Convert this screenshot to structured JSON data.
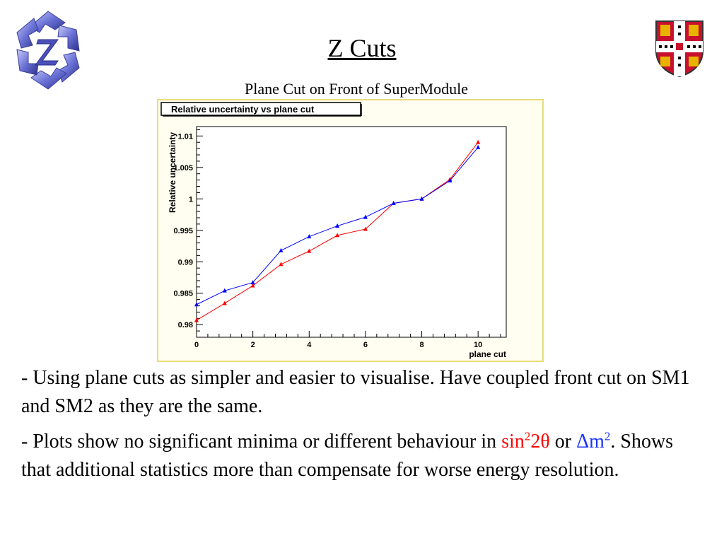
{
  "header": {
    "title": "Z Cuts",
    "subtitle": "Plane Cut on Front of SuperModule"
  },
  "logos": {
    "left": "minos-star-logo",
    "right": "cambridge-crest-logo"
  },
  "chart_data": {
    "type": "line",
    "title": "Relative uncertainty vs plane cut",
    "xlabel": "plane cut",
    "ylabel": "Relative uncertainty",
    "xlim": [
      0,
      11
    ],
    "ylim": [
      0.978,
      1.0115
    ],
    "x_ticks": [
      "0",
      "2",
      "4",
      "6",
      "8",
      "10"
    ],
    "y_ticks": [
      "0.98",
      "0.985",
      "0.99",
      "0.995",
      "1",
      "1.005",
      "1.01"
    ],
    "x": [
      0,
      1,
      2,
      3,
      4,
      5,
      6,
      7,
      8,
      9,
      10
    ],
    "series": [
      {
        "color": "#ff0000",
        "values": [
          0.9807,
          0.9834,
          0.9862,
          0.9896,
          0.9917,
          0.9942,
          0.9952,
          0.9993,
          1.0,
          1.0031,
          1.009
        ]
      },
      {
        "color": "#0000ff",
        "values": [
          0.9832,
          0.9854,
          0.9867,
          0.9918,
          0.994,
          0.9957,
          0.9971,
          0.9993,
          1.0,
          1.0029,
          1.0082
        ]
      }
    ],
    "grid": false,
    "legend": "none"
  },
  "bullets": {
    "b1": "- Using plane cuts as simpler and easier to visualise. Have coupled front cut on SM1 and SM2 as they are the same.",
    "b2_a": "- Plots show no significant minima or different behaviour in ",
    "b2_sin": "sin",
    "b2_sup1": "2",
    "b2_theta": "2θ",
    "b2_or": " or ",
    "b2_dm": "Δm",
    "b2_sup2": "2",
    "b2_rest": ". Shows that additional statistics more than compensate for worse energy resolution."
  },
  "colors": {
    "highlight_red": "#ff0000",
    "highlight_blue": "#1a33ff",
    "frame_border": "#e8dc7a"
  }
}
